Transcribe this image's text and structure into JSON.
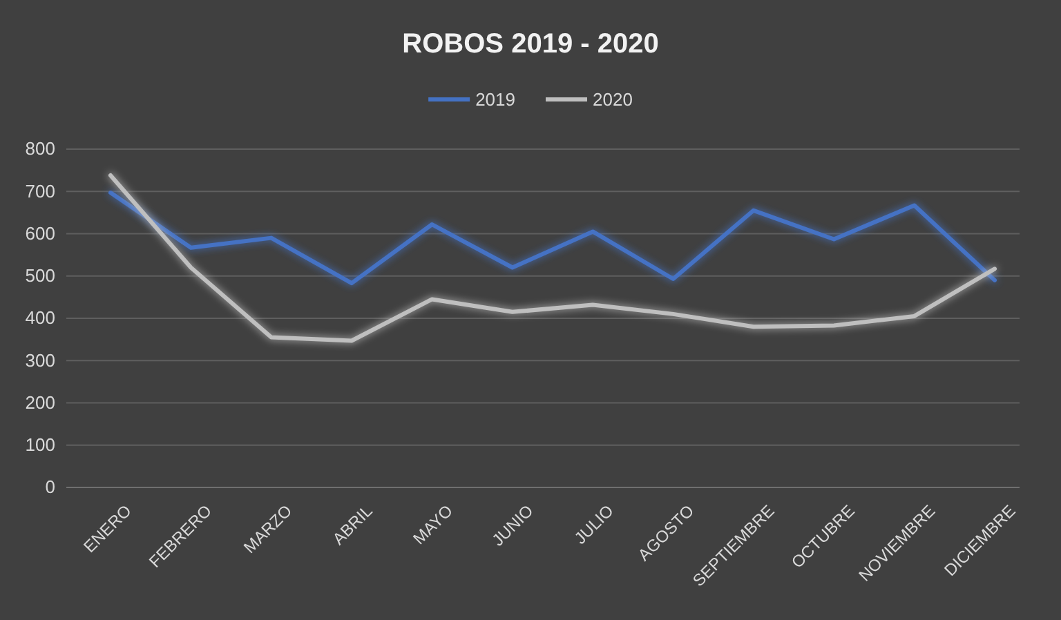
{
  "chart_data": {
    "type": "line",
    "title": "ROBOS 2019 - 2020",
    "categories": [
      "ENERO",
      "FEBRERO",
      "MARZO",
      "ABRIL",
      "MAYO",
      "JUNIO",
      "JULIO",
      "AGOSTO",
      "SEPTIEMBRE",
      "OCTUBRE",
      "NOVIEMBRE",
      "DICIEMBRE"
    ],
    "series": [
      {
        "name": "2019",
        "color": "#4472c4",
        "values": [
          697,
          567,
          590,
          483,
          622,
          520,
          605,
          493,
          655,
          587,
          667,
          490
        ]
      },
      {
        "name": "2020",
        "color": "#bfbfbf",
        "values": [
          738,
          520,
          355,
          347,
          445,
          415,
          432,
          410,
          380,
          383,
          405,
          517
        ]
      }
    ],
    "ylim": [
      0,
      800
    ],
    "yticks": [
      0,
      100,
      200,
      300,
      400,
      500,
      600,
      700,
      800
    ],
    "grid": "y",
    "legend": "top",
    "marker": "none",
    "line_style": "solid"
  }
}
